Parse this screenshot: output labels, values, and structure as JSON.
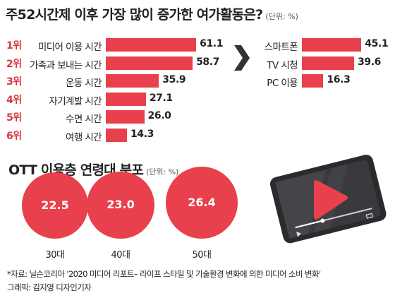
{
  "header": {
    "title": "주52시간제 이후 가장 많이 증가한 여가활동은?",
    "unit": "(단위: %)"
  },
  "chart_data": [
    {
      "type": "bar",
      "title": "주52시간제 이후 가장 많이 증가한 여가활동은?",
      "ranks": [
        "1위",
        "2위",
        "3위",
        "4위",
        "5위",
        "6위"
      ],
      "categories": [
        "미디어 이용 시간",
        "가족과 보내는 시간",
        "운동 시간",
        "자기계발 시간",
        "수면 시간",
        "여행 시간"
      ],
      "values": [
        61.1,
        58.7,
        35.9,
        27.1,
        26.0,
        14.3
      ],
      "value_labels": [
        "61.1",
        "58.7",
        "35.9",
        "27.1",
        "26.0",
        "14.3"
      ],
      "unit": "%",
      "xlim": [
        0,
        62
      ],
      "grid": false,
      "colors": {
        "bar": "#e8404c",
        "rank": "#d63843"
      }
    },
    {
      "type": "bar",
      "categories": [
        "스마트폰",
        "TV 시청",
        "PC 이용"
      ],
      "values": [
        45.1,
        39.6,
        16.3
      ],
      "value_labels": [
        "45.1",
        "39.6",
        "16.3"
      ],
      "unit": "%",
      "xlim": [
        0,
        46
      ],
      "grid": false,
      "colors": {
        "bar": "#e8404c"
      }
    },
    {
      "type": "bubble",
      "title": "OTT 이용층 연령대 분포",
      "unit": "(단위: %)",
      "categories": [
        "30대",
        "40대",
        "50대"
      ],
      "values": [
        22.5,
        23.0,
        26.4
      ],
      "value_labels": [
        "22.5",
        "23.0",
        "26.4"
      ],
      "colors": {
        "bubble": "#e8404c"
      }
    }
  ],
  "section2": {
    "title": "OTT 이용층 연령대 분포",
    "unit": "(단위: %)"
  },
  "footer": {
    "source": "*자료: 닐슨코리아 '2020 미디어 리포트– 라이프 스타일 및 기술환경 변화에 의한 미디어 소비 변화'",
    "credit": "그래픽: 김지영 디자인기자"
  },
  "icons": {
    "arrow": "right-chevron-arrow-icon",
    "media": "video-player-illustration-icon"
  }
}
